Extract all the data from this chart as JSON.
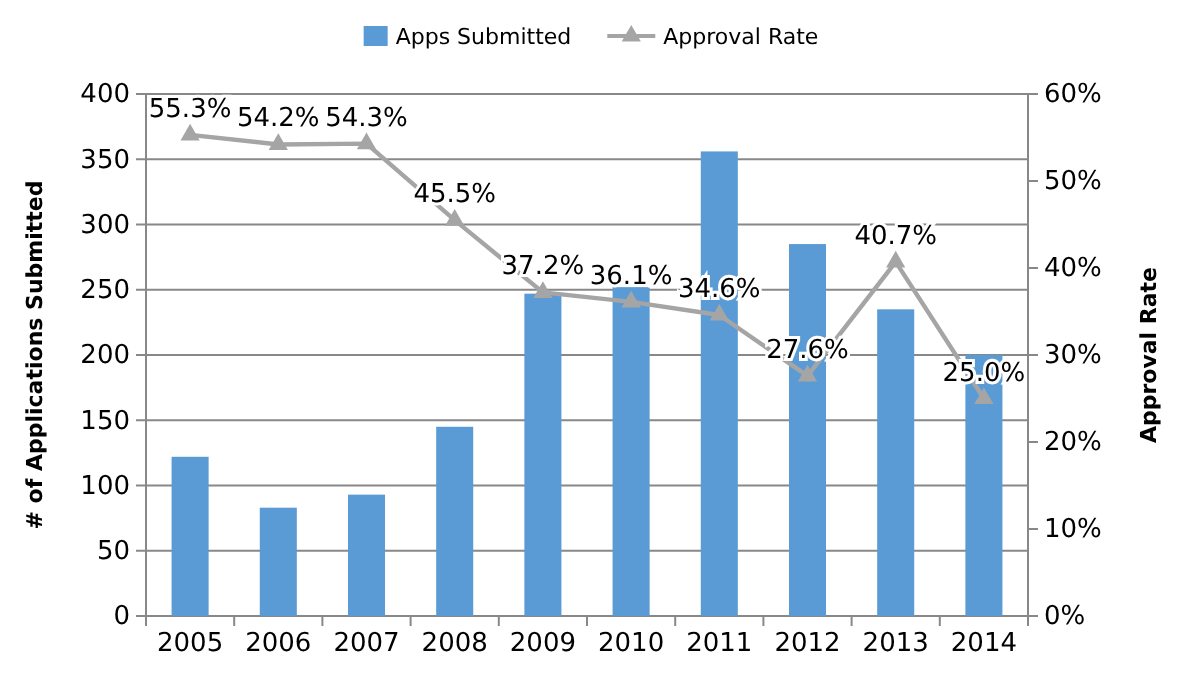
{
  "chart_data": {
    "type": "bar",
    "categories": [
      "2005",
      "2006",
      "2007",
      "2008",
      "2009",
      "2010",
      "2011",
      "2012",
      "2013",
      "2014"
    ],
    "ylabel": "# of Applications Submitted",
    "y2label": "Approval Rate",
    "ylim": [
      0,
      400
    ],
    "yticks": [
      0,
      50,
      100,
      150,
      200,
      250,
      300,
      350,
      400
    ],
    "y2lim": [
      0,
      60
    ],
    "y2ticks": [
      {
        "value": 0,
        "label": "0%"
      },
      {
        "value": 10,
        "label": "10%"
      },
      {
        "value": 20,
        "label": "20%"
      },
      {
        "value": 30,
        "label": "30%"
      },
      {
        "value": 40,
        "label": "40%"
      },
      {
        "value": 50,
        "label": "50%"
      },
      {
        "value": 60,
        "label": "60%"
      }
    ],
    "grid": "y",
    "legend": "top",
    "marker": "triangle",
    "series": [
      {
        "name": "Apps Submitted",
        "color": "#5b9bd5",
        "values": [
          122,
          83,
          93,
          145,
          247,
          252,
          356,
          285,
          235,
          200
        ]
      },
      {
        "name": "Approval Rate",
        "type": "line",
        "axis": "y2",
        "color": "#a5a5a5",
        "values": [
          55.3,
          54.2,
          54.3,
          45.5,
          37.2,
          36.1,
          34.6,
          27.6,
          40.7,
          25.0
        ],
        "value_labels": [
          "55.3%",
          "54.2%",
          "54.3%",
          "45.5%",
          "37.2%",
          "36.1%",
          "34.6%",
          "27.6%",
          "40.7%",
          "25.0%"
        ]
      }
    ]
  }
}
